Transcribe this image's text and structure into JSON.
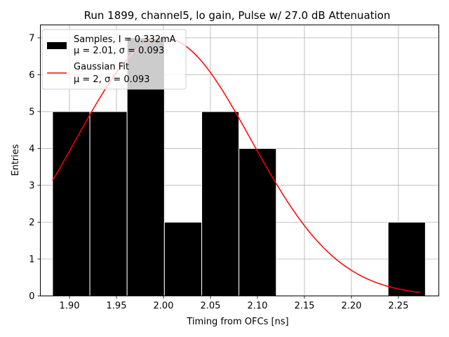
{
  "chart_data": {
    "type": "bar",
    "title": "Run 1899, channel5, lo gain, Pulse w/ 27.0 dB Attenuation",
    "xlabel": "Timing from OFCs [ns]",
    "ylabel": "Entries",
    "xlim": [
      1.869,
      2.293
    ],
    "ylim": [
      0,
      7.35
    ],
    "xticks": [
      "1.90",
      "1.95",
      "2.00",
      "2.05",
      "2.10",
      "2.15",
      "2.20",
      "2.25"
    ],
    "xtick_values": [
      1.9,
      1.95,
      2.0,
      2.05,
      2.1,
      2.15,
      2.2,
      2.25
    ],
    "yticks": [
      "0",
      "1",
      "2",
      "3",
      "4",
      "5",
      "6",
      "7"
    ],
    "ytick_values": [
      0,
      1,
      2,
      3,
      4,
      5,
      6,
      7
    ],
    "grid": true,
    "legend_position": "top-left",
    "bins": [
      {
        "x0": 1.882,
        "x1": 1.9217,
        "value": 5
      },
      {
        "x0": 1.9217,
        "x1": 1.9613,
        "value": 5
      },
      {
        "x0": 1.9613,
        "x1": 2.001,
        "value": 7
      },
      {
        "x0": 2.001,
        "x1": 2.0407,
        "value": 2
      },
      {
        "x0": 2.0407,
        "x1": 2.0803,
        "value": 5
      },
      {
        "x0": 2.0803,
        "x1": 2.12,
        "value": 4
      },
      {
        "x0": 2.12,
        "x1": 2.1597,
        "value": 0
      },
      {
        "x0": 2.1597,
        "x1": 2.1993,
        "value": 0
      },
      {
        "x0": 2.1993,
        "x1": 2.239,
        "value": 0
      },
      {
        "x0": 2.239,
        "x1": 2.2787,
        "value": 2
      }
    ],
    "series": [
      {
        "name": "Samples, I = 0.332mA",
        "name_line2": "μ = 2.01, σ = 0.093",
        "type": "histogram",
        "color": "#000000"
      },
      {
        "name": "Gaussian Fit",
        "name_line2": "μ = 2, σ = 0.093",
        "type": "line",
        "color": "#ff0000",
        "mu": 2.0,
        "sigma": 0.093,
        "amplitude": 7.0,
        "x_range": [
          1.882,
          2.273
        ]
      }
    ]
  }
}
